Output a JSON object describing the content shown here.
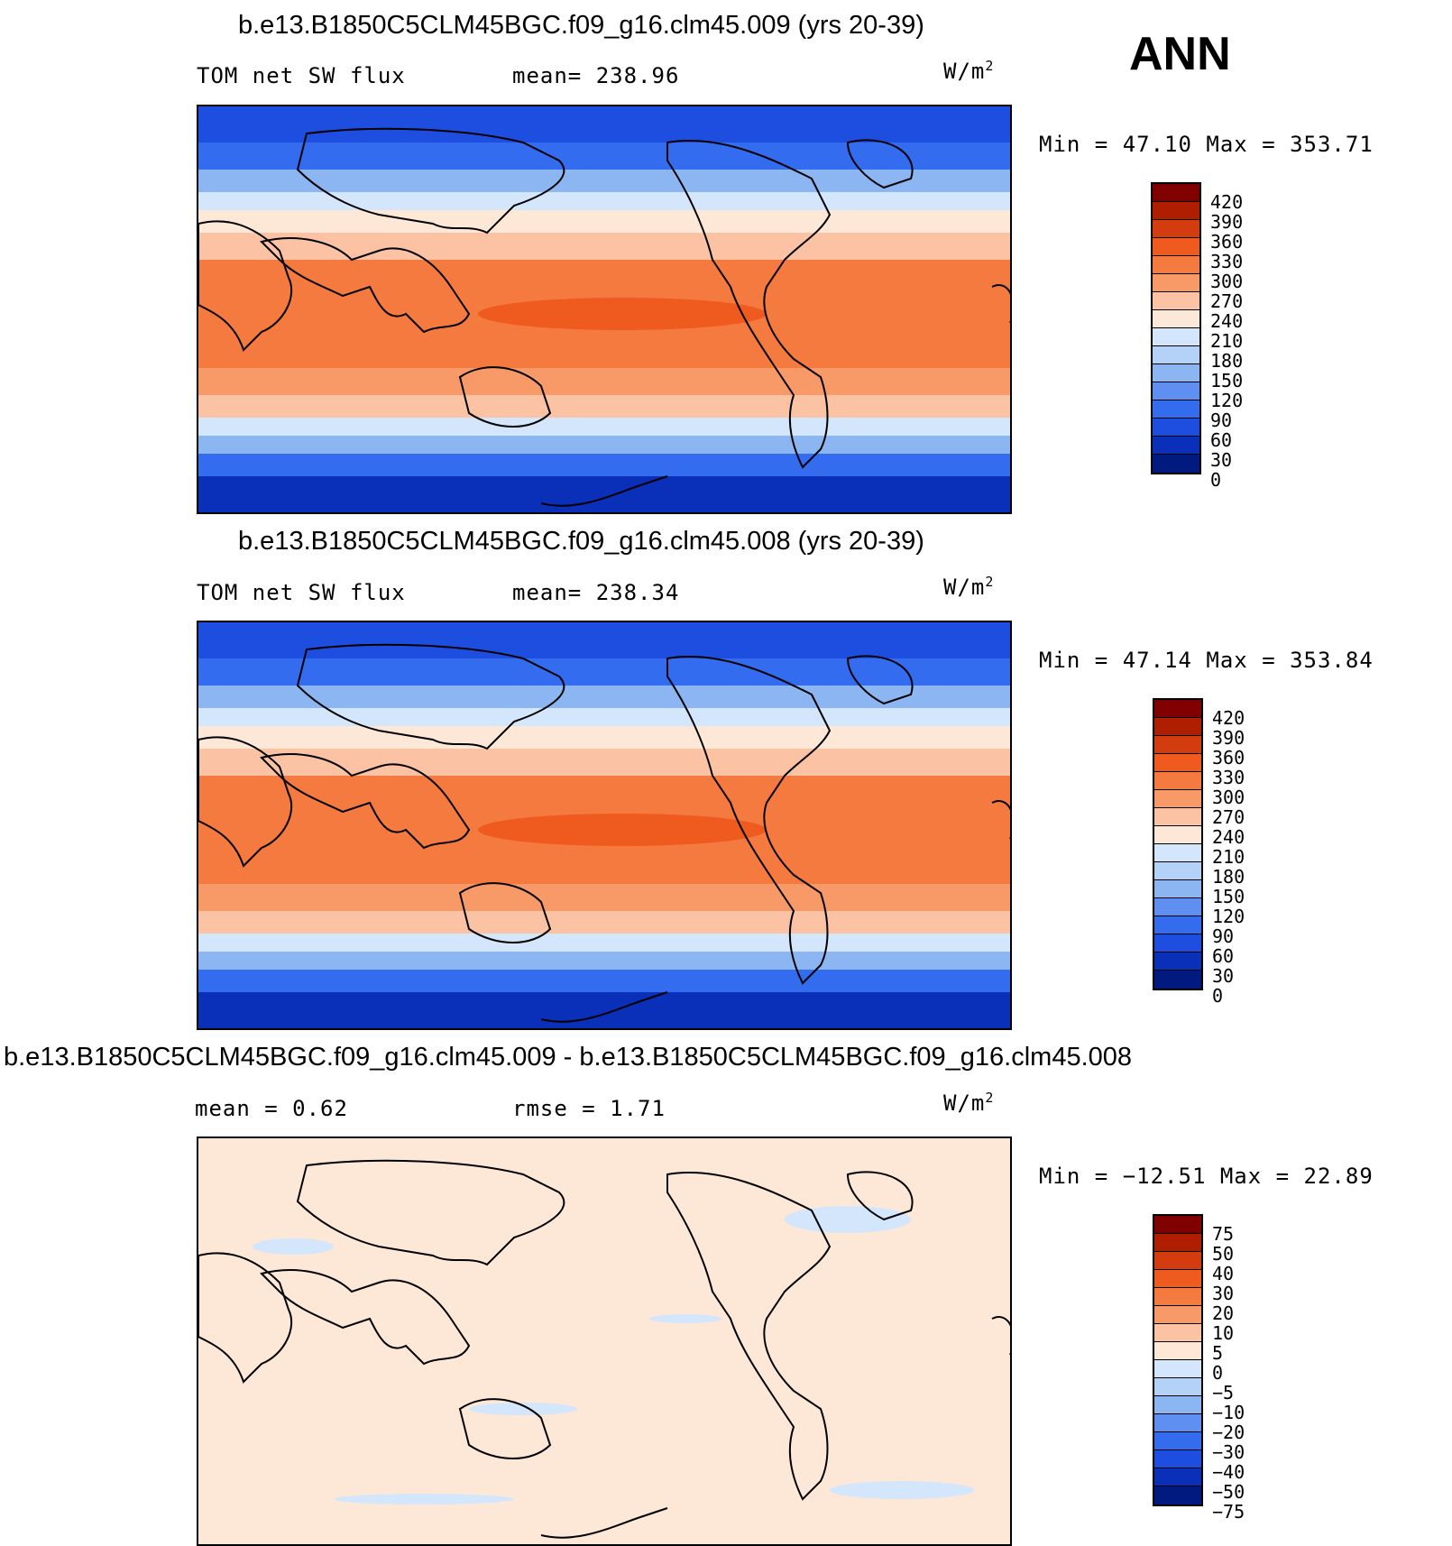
{
  "season": "ANN",
  "panels": [
    {
      "title": "b.e13.B1850C5CLM45BGC.f09_g16.clm45.009 (yrs 20-39)",
      "left_label": "TOM net SW flux",
      "mid_label": "mean= 238.96",
      "units": "W/m",
      "units_sup": "2",
      "minmax": "Min =   47.10 Max = 353.71",
      "colorbar": {
        "labels": [
          "420",
          "390",
          "360",
          "330",
          "300",
          "270",
          "240",
          "210",
          "180",
          "150",
          "120",
          "90",
          "60",
          "30",
          "0"
        ],
        "colors": [
          "#800000",
          "#b01e00",
          "#d23c0e",
          "#ef5a1e",
          "#f57a3f",
          "#f89a68",
          "#fbc3a3",
          "#fde8d8",
          "#d3e6fb",
          "#b4d2f7",
          "#8cb6f2",
          "#5f8ff0",
          "#346cef",
          "#1d4ee0",
          "#0a2fb8",
          "#001a80"
        ]
      },
      "map_style": "full"
    },
    {
      "title": "b.e13.B1850C5CLM45BGC.f09_g16.clm45.008 (yrs 20-39)",
      "left_label": "TOM net SW flux",
      "mid_label": "mean= 238.34",
      "units": "W/m",
      "units_sup": "2",
      "minmax": "Min =   47.14 Max = 353.84",
      "colorbar": {
        "labels": [
          "420",
          "390",
          "360",
          "330",
          "300",
          "270",
          "240",
          "210",
          "180",
          "150",
          "120",
          "90",
          "60",
          "30",
          "0"
        ],
        "colors": [
          "#800000",
          "#b01e00",
          "#d23c0e",
          "#ef5a1e",
          "#f57a3f",
          "#f89a68",
          "#fbc3a3",
          "#fde8d8",
          "#d3e6fb",
          "#b4d2f7",
          "#8cb6f2",
          "#5f8ff0",
          "#346cef",
          "#1d4ee0",
          "#0a2fb8",
          "#001a80"
        ]
      },
      "map_style": "full"
    },
    {
      "title": "b.e13.B1850C5CLM45BGC.f09_g16.clm45.009 - b.e13.B1850C5CLM45BGC.f09_g16.clm45.008",
      "left_label": "mean =    0.62",
      "mid_label": "rmse =    1.71",
      "units": "W/m",
      "units_sup": "2",
      "minmax": "Min = −12.51 Max =   22.89",
      "colorbar": {
        "labels": [
          "75",
          "50",
          "40",
          "30",
          "20",
          "10",
          "5",
          "0",
          "−5",
          "−10",
          "−20",
          "−30",
          "−40",
          "−50",
          "−75"
        ],
        "colors": [
          "#800000",
          "#b01e00",
          "#d23c0e",
          "#ef5a1e",
          "#f57a3f",
          "#f89a68",
          "#fbc3a3",
          "#fde8d8",
          "#d3e6fb",
          "#b4d2f7",
          "#8cb6f2",
          "#5f8ff0",
          "#346cef",
          "#1d4ee0",
          "#0a2fb8",
          "#001a80"
        ]
      },
      "map_style": "diff"
    }
  ]
}
